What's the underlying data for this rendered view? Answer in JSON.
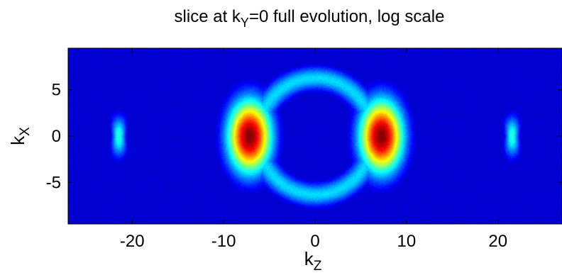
{
  "chart_data": {
    "type": "heatmap",
    "title": {
      "main": "slice at k",
      "sub": "Y",
      "rest": "=0 full evolution, log scale"
    },
    "xlabel": {
      "main": "k",
      "sub": "Z"
    },
    "ylabel": {
      "main": "k",
      "sub": "X"
    },
    "xlim": [
      -27,
      27
    ],
    "ylim": [
      -9.5,
      9.5
    ],
    "scale": "log",
    "colormap": "jet",
    "xticks": [
      -20,
      -10,
      0,
      10,
      20
    ],
    "yticks": [
      -5,
      0,
      5
    ],
    "xtick_labels": [
      "-20",
      "-10",
      "0",
      "10",
      "20"
    ],
    "ytick_labels": [
      "-5",
      "0",
      "5"
    ],
    "features": [
      {
        "shape": "ring",
        "center": [
          0,
          0
        ],
        "radius": 6.3,
        "width": 2.2,
        "level": 0.34
      },
      {
        "shape": "lobe",
        "center": [
          -7.2,
          0
        ],
        "sigma": [
          1.7,
          2.8
        ],
        "level": 1.0
      },
      {
        "shape": "lobe",
        "center": [
          7.2,
          0
        ],
        "sigma": [
          1.7,
          2.8
        ],
        "level": 1.0
      },
      {
        "shape": "crescent",
        "center": [
          -21.5,
          0
        ],
        "sigma": [
          0.5,
          1.6
        ],
        "level": 0.42
      },
      {
        "shape": "crescent",
        "center": [
          21.5,
          0
        ],
        "sigma": [
          0.5,
          1.6
        ],
        "level": 0.42
      }
    ],
    "background_level": 0.08
  }
}
